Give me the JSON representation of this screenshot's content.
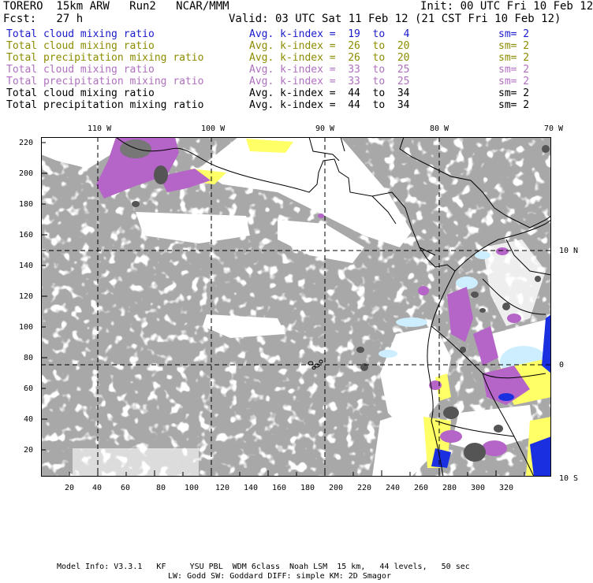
{
  "header": {
    "model": "TORERO  15km ARW   Run2   NCAR/MMM",
    "init": "Init: 00 UTC Fri 10 Feb 12",
    "fcst": "Fcst:   27 h",
    "valid": "Valid: 03 UTC Sat 11 Feb 12 (21 CST Fri 10 Feb 12)"
  },
  "legend": [
    {
      "name": "Total cloud mixing ratio",
      "k": "Avg. k-index =  19  to   4",
      "sm": "sm= 2",
      "color": "#1a1acc"
    },
    {
      "name": "Total cloud mixing ratio",
      "k": "Avg. k-index =  26  to  20",
      "sm": "sm= 2",
      "color": "#8c8c00"
    },
    {
      "name": "Total precipitation mixing ratio",
      "k": "Avg. k-index =  26  to  20",
      "sm": "sm= 2",
      "color": "#8c8c00"
    },
    {
      "name": "Total cloud mixing ratio",
      "k": "Avg. k-index =  33  to  25",
      "sm": "sm= 2",
      "color": "#b070c0"
    },
    {
      "name": "Total precipitation mixing ratio",
      "k": "Avg. k-index =  33  to  25",
      "sm": "sm= 2",
      "color": "#b070c0"
    },
    {
      "name": "Total cloud mixing ratio",
      "k": "Avg. k-index =  44  to  34",
      "sm": "sm= 2",
      "color": "#000000"
    },
    {
      "name": "Total precipitation mixing ratio",
      "k": "Avg. k-index =  44  to  34",
      "sm": "sm= 2",
      "color": "#000000"
    }
  ],
  "map": {
    "lon_labels": [
      "110 W",
      "100 W",
      "90 W",
      "80 W",
      "70 W"
    ],
    "lat_labels": [
      "10 N",
      "0",
      "10 S"
    ],
    "x_ticks": [
      "20",
      "40",
      "60",
      "80",
      "100",
      "120",
      "140",
      "160",
      "180",
      "200",
      "220",
      "240",
      "260",
      "280",
      "300",
      "320"
    ],
    "y_ticks": [
      "20",
      "40",
      "60",
      "80",
      "100",
      "120",
      "140",
      "160",
      "180",
      "200",
      "220"
    ],
    "colors": {
      "cloud": "#a8a8a8",
      "dark": "#555555",
      "yellow": "#ffff66",
      "magenta": "#b565c8",
      "lightblue": "#cceeff",
      "blue": "#1a30e0"
    }
  },
  "footer": {
    "line1": "Model Info: V3.3.1   KF     YSU PBL  WDM 6class  Noah LSM  15 km,   44 levels,   50 sec",
    "line2": "LW: Godd SW: Goddard DIFF: simple KM: 2D Smagor"
  }
}
